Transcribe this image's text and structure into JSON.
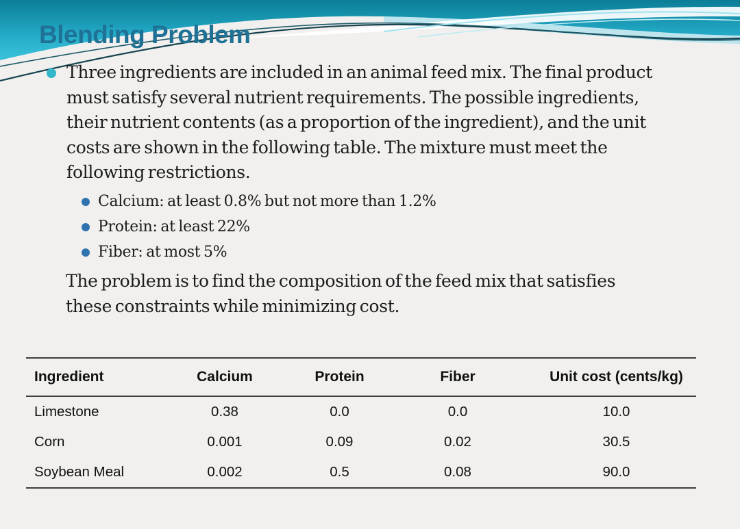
{
  "slide": {
    "title": "Blending Problem",
    "intro": {
      "text": "Three ingredients are included in an animal feed mix. The final product\nmust satisfy several nutrient requirements. The possible ingredients,\ntheir nutrient contents (as a proportion of the ingredient), and the unit\ncosts are shown in the following table. The mixture must meet the\nfollowing restrictions."
    },
    "restrictions": [
      "Calcium: at least 0.8% but not more than 1.2%",
      "Protein: at least 22%",
      "Fiber: at most 5%"
    ],
    "closing": "The problem is to find the composition of the feed mix that satisfies\nthese constraints while minimizing cost.",
    "colors": {
      "background": "#f1f0ee",
      "title": "#1f7296",
      "wave_teal_dark": "#0c7d96",
      "wave_cyan": "#3bc2da",
      "main_bullet": "#33b7c9",
      "sub_bullet": "#2e73b0",
      "table_rule": "#3d3d3d"
    }
  },
  "table": {
    "columns": [
      "Ingredient",
      "Calcium",
      "Protein",
      "Fiber",
      "Unit cost (cents/kg)"
    ],
    "rows": [
      [
        "Limestone",
        "0.38",
        "0.0",
        "0.0",
        "10.0"
      ],
      [
        "Corn",
        "0.001",
        "0.09",
        "0.02",
        "30.5"
      ],
      [
        "Soybean Meal",
        "0.002",
        "0.5",
        "0.08",
        "90.0"
      ]
    ]
  }
}
